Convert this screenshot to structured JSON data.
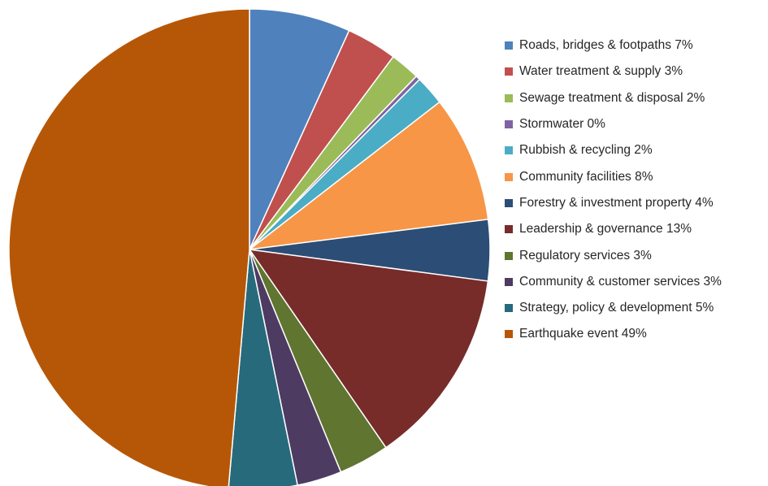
{
  "chart_data": {
    "type": "pie",
    "start_angle_deg": 0,
    "direction": "clockwise",
    "legend_position": "right",
    "slices": [
      {
        "label": "Roads, bridges & footpaths 7%",
        "value": 6.8,
        "color": "#4F81BD"
      },
      {
        "label": "Water treatment & supply 3%",
        "value": 3.4,
        "color": "#C0504D"
      },
      {
        "label": "Sewage treatment & disposal 2%",
        "value": 2.0,
        "color": "#9BBB59"
      },
      {
        "label": "Stormwater 0%",
        "value": 0.3,
        "color": "#8064A2"
      },
      {
        "label": "Rubbish & recycling 2%",
        "value": 2.0,
        "color": "#4BACC6"
      },
      {
        "label": "Community facilities 8%",
        "value": 8.5,
        "color": "#F79646"
      },
      {
        "label": "Forestry & investment property 4%",
        "value": 4.1,
        "color": "#2C4D75"
      },
      {
        "label": "Leadership & governance 13%",
        "value": 13.3,
        "color": "#772C2A"
      },
      {
        "label": "Regulatory services 3%",
        "value": 3.4,
        "color": "#5F7530"
      },
      {
        "label": "Community & customer services 3%",
        "value": 3.0,
        "color": "#4D3B62"
      },
      {
        "label": "Strategy, policy & development 5%",
        "value": 4.6,
        "color": "#276A7C"
      },
      {
        "label": "Earthquake event 49%",
        "value": 48.6,
        "color": "#B65708"
      }
    ]
  }
}
